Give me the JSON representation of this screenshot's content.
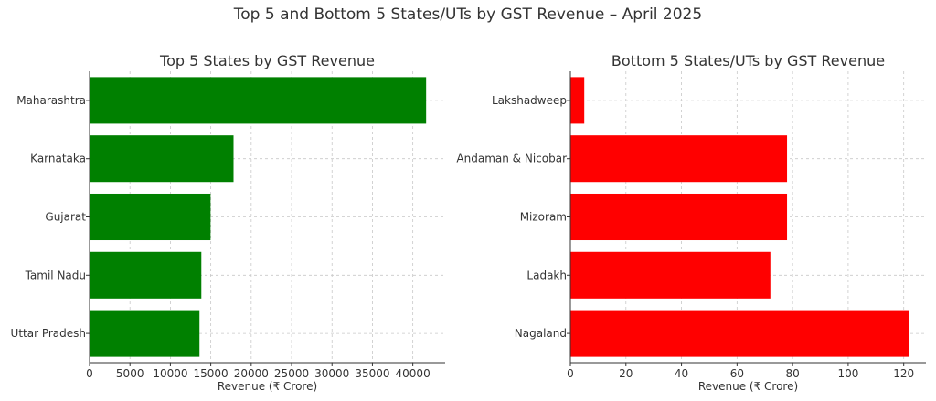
{
  "figure": {
    "title": "Top 5 and Bottom 5 States/UTs by GST Revenue – April 2025"
  },
  "chart_data": [
    {
      "type": "bar",
      "orientation": "horizontal",
      "title": "Top 5 States by GST Revenue",
      "xlabel": "Revenue (₹ Crore)",
      "ylabel": "",
      "categories": [
        "Maharashtra",
        "Karnataka",
        "Gujarat",
        "Tamil Nadu",
        "Uttar Pradesh"
      ],
      "values": [
        41645,
        17815,
        14970,
        13831,
        13600
      ],
      "xlim": [
        0,
        44000
      ],
      "xticks": [
        0,
        5000,
        10000,
        15000,
        20000,
        25000,
        30000,
        35000,
        40000
      ],
      "color": "#008000",
      "grid": true,
      "legend": "none"
    },
    {
      "type": "bar",
      "orientation": "horizontal",
      "title": "Bottom 5 States/UTs by GST Revenue",
      "xlabel": "Revenue (₹ Crore)",
      "ylabel": "",
      "categories": [
        "Lakshadweep",
        "Andaman & Nicobar",
        "Mizoram",
        "Ladakh",
        "Nagaland"
      ],
      "values": [
        5,
        78,
        78,
        72,
        122
      ],
      "xlim": [
        0,
        128
      ],
      "xticks": [
        0,
        20,
        40,
        60,
        80,
        100,
        120
      ],
      "color": "#ff0000",
      "grid": true,
      "legend": "none"
    }
  ]
}
